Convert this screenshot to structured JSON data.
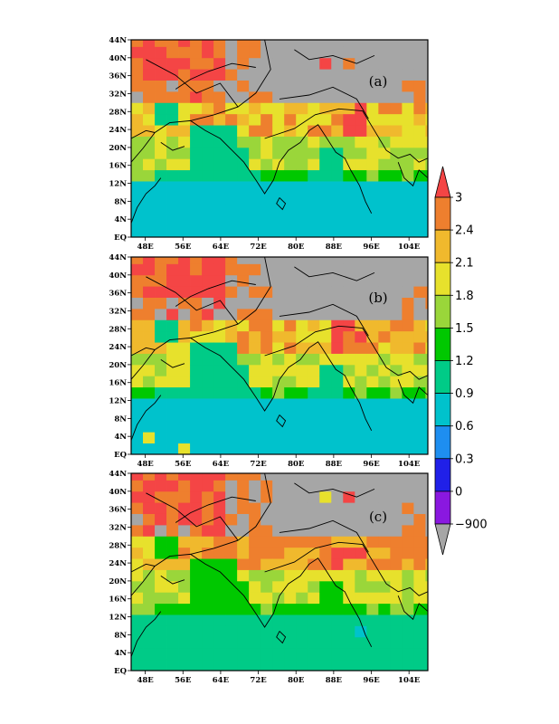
{
  "chart_data": {
    "type": "heatmap",
    "title": "",
    "xlabel": "",
    "ylabel": "",
    "lat_tick_labels": [
      "44N",
      "40N",
      "36N",
      "32N",
      "28N",
      "24N",
      "20N",
      "16N",
      "12N",
      "8N",
      "4N",
      "EQ"
    ],
    "lon_tick_labels": [
      "48E",
      "56E",
      "64E",
      "72E",
      "80E",
      "88E",
      "96E",
      "104E"
    ],
    "lon_range": [
      45,
      108
    ],
    "lat_range": [
      0,
      44
    ],
    "panels": [
      {
        "label": "(a)",
        "name": "panel-a"
      },
      {
        "label": "(b)",
        "name": "panel-b"
      },
      {
        "label": "(c)",
        "name": "panel-c"
      }
    ],
    "colorbar": {
      "labels": [
        "3",
        "2.4",
        "2.1",
        "1.8",
        "1.5",
        "1.2",
        "0.9",
        "0.6",
        "0.3",
        "0",
        "-900"
      ],
      "colors": {
        "above_3": "#f44545",
        "c_2_4_3": "#ee7f2e",
        "c_2_1_2_4": "#f0b92d",
        "c_1_8_2_1": "#e7e12c",
        "c_1_5_1_8": "#9ad63a",
        "c_1_2_1_5": "#00c800",
        "c_0_9_1_2": "#00cb87",
        "c_0_6_0_9": "#00c2cc",
        "c_0_3_0_6": "#1e8ef0",
        "c_0_0_3": "#2020e8",
        "c_m900_0": "#8a18e0",
        "below_m900": "#a6a6a6"
      }
    }
  }
}
